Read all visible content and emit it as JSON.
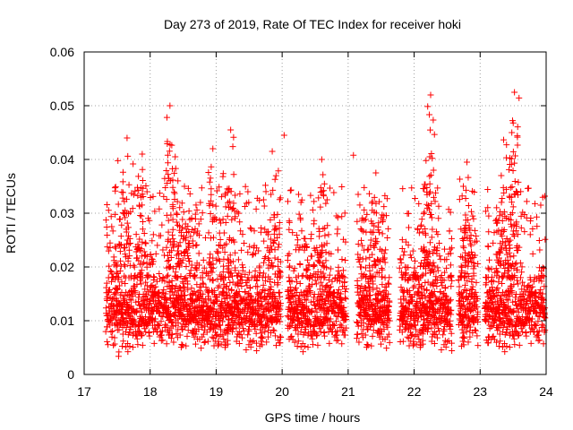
{
  "chart_data": {
    "type": "scatter",
    "title": "Day 273 of 2019, Rate Of TEC Index for receiver hoki",
    "xlabel": "GPS time / hours",
    "ylabel": "ROTI / TECUs",
    "xlim": [
      17,
      24
    ],
    "ylim": [
      0,
      0.06
    ],
    "x_ticks": [
      "17",
      "18",
      "19",
      "20",
      "21",
      "22",
      "23",
      "24"
    ],
    "y_ticks": [
      "0",
      "0.01",
      "0.02",
      "0.03",
      "0.04",
      "0.05",
      "0.06"
    ],
    "grid": true,
    "marker": "+",
    "color": "#ff0000",
    "series": [
      {
        "name": "ROTI",
        "x_start": 17.33,
        "x_end": 24.0,
        "typical_range": [
          0.005,
          0.02
        ],
        "median": 0.012,
        "gaps": [
          [
            19.98,
            20.08
          ],
          [
            20.97,
            21.13
          ],
          [
            21.63,
            21.78
          ],
          [
            22.57,
            22.67
          ],
          [
            22.97,
            23.07
          ]
        ],
        "peaks": [
          {
            "x": 17.65,
            "y": 0.044
          },
          {
            "x": 17.88,
            "y": 0.041
          },
          {
            "x": 18.3,
            "y": 0.05
          },
          {
            "x": 18.38,
            "y": 0.0405
          },
          {
            "x": 18.52,
            "y": 0.035
          },
          {
            "x": 18.95,
            "y": 0.042
          },
          {
            "x": 19.22,
            "y": 0.0455
          },
          {
            "x": 19.85,
            "y": 0.0415
          },
          {
            "x": 20.03,
            "y": 0.0445
          },
          {
            "x": 20.6,
            "y": 0.04
          },
          {
            "x": 21.08,
            "y": 0.0408
          },
          {
            "x": 21.42,
            "y": 0.0375
          },
          {
            "x": 22.25,
            "y": 0.052
          },
          {
            "x": 22.18,
            "y": 0.0398
          },
          {
            "x": 22.8,
            "y": 0.0395
          },
          {
            "x": 23.32,
            "y": 0.037
          },
          {
            "x": 23.52,
            "y": 0.0525
          },
          {
            "x": 23.48,
            "y": 0.045
          }
        ]
      }
    ]
  }
}
